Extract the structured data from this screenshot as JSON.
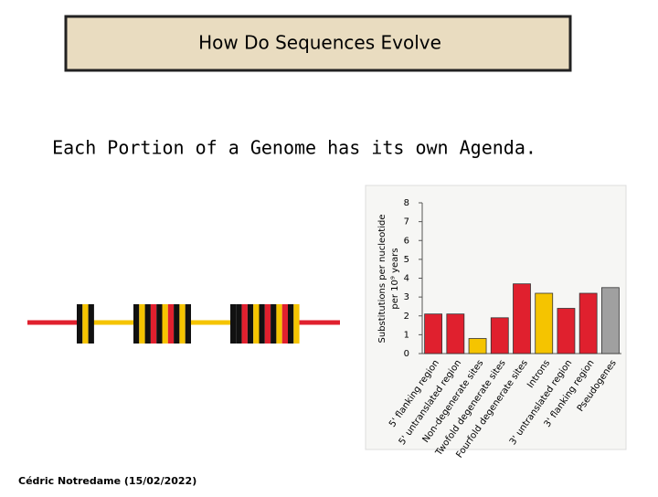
{
  "header": {
    "title": "How Do Sequences Evolve"
  },
  "subtitle": "Each Portion of a Genome has its own Agenda.",
  "footer": "Cédric Notredame (15/02/2022)",
  "chart_data": {
    "type": "bar",
    "y_label_lines": [
      "Substitutions per nucleotide",
      "per 10⁹ years"
    ],
    "categories": [
      "5' flanking region",
      "5' untranslated region",
      "Non-degenerate sites",
      "Twofold degenerate sites",
      "Fourfold degenerate sites",
      "Introns",
      "3' untranslated region",
      "3' flanking region",
      "Pseudogenes"
    ],
    "values": [
      2.1,
      2.1,
      0.8,
      1.9,
      3.7,
      3.2,
      2.4,
      3.2,
      3.5
    ],
    "colors": [
      "#e0202e",
      "#e0202e",
      "#f5c400",
      "#e0202e",
      "#e0202e",
      "#f5c400",
      "#e0202e",
      "#e0202e",
      "#a0a0a0"
    ],
    "ylim": [
      0,
      8
    ],
    "yticks": [
      0,
      1,
      2,
      3,
      4,
      5,
      6,
      7,
      8
    ]
  }
}
